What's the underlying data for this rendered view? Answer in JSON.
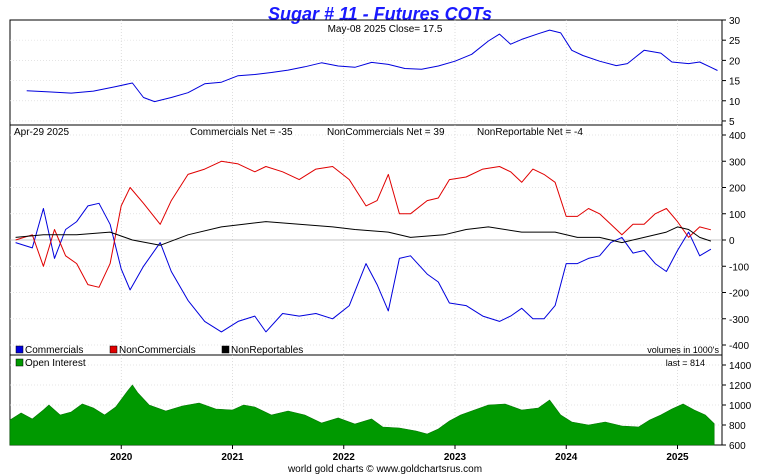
{
  "title": "Sugar # 11 - Futures COTs",
  "footer": "world gold charts © www.goldchartsrus.com",
  "colors": {
    "price": "#0000dd",
    "commercials": "#0000dd",
    "noncommercials": "#e00000",
    "nonreportables": "#000000",
    "open_interest": "#009900"
  },
  "chart_data": [
    {
      "type": "line",
      "panel": "price",
      "subtitle": "May-08  2025   Close= 17.5",
      "ylim": [
        4,
        30
      ],
      "yticks": [
        5,
        10,
        15,
        20,
        25,
        30
      ],
      "y_axis_side": "right",
      "series": [
        {
          "values": [
            [
              2019.15,
              12.5
            ],
            [
              2019.35,
              12.2
            ],
            [
              2019.55,
              11.9
            ],
            [
              2019.75,
              12.4
            ],
            [
              2019.95,
              13.5
            ],
            [
              2020.1,
              14.4
            ],
            [
              2020.2,
              10.8
            ],
            [
              2020.3,
              9.8
            ],
            [
              2020.45,
              10.8
            ],
            [
              2020.6,
              12.0
            ],
            [
              2020.75,
              14.2
            ],
            [
              2020.9,
              14.6
            ],
            [
              2021.05,
              16.2
            ],
            [
              2021.2,
              16.5
            ],
            [
              2021.35,
              17.0
            ],
            [
              2021.5,
              17.6
            ],
            [
              2021.65,
              18.4
            ],
            [
              2021.8,
              19.4
            ],
            [
              2021.95,
              18.6
            ],
            [
              2022.1,
              18.3
            ],
            [
              2022.25,
              19.5
            ],
            [
              2022.4,
              19.0
            ],
            [
              2022.55,
              18.0
            ],
            [
              2022.7,
              17.8
            ],
            [
              2022.85,
              18.6
            ],
            [
              2023.0,
              19.8
            ],
            [
              2023.15,
              21.5
            ],
            [
              2023.3,
              24.8
            ],
            [
              2023.4,
              26.5
            ],
            [
              2023.5,
              24.0
            ],
            [
              2023.6,
              25.2
            ],
            [
              2023.75,
              26.6
            ],
            [
              2023.85,
              27.5
            ],
            [
              2023.95,
              26.8
            ],
            [
              2024.05,
              22.5
            ],
            [
              2024.15,
              21.2
            ],
            [
              2024.3,
              19.8
            ],
            [
              2024.45,
              18.7
            ],
            [
              2024.55,
              19.2
            ],
            [
              2024.7,
              22.5
            ],
            [
              2024.85,
              21.8
            ],
            [
              2024.95,
              19.6
            ],
            [
              2025.1,
              19.2
            ],
            [
              2025.2,
              19.6
            ],
            [
              2025.3,
              18.3
            ],
            [
              2025.36,
              17.5
            ]
          ]
        }
      ]
    },
    {
      "type": "line",
      "panel": "cot",
      "date_label": "Apr-29  2025",
      "header_labels": [
        "Commercials Net = -35",
        "NonCommercials Net = 39",
        "NonReportable Net = -4"
      ],
      "ylim": [
        -400,
        400
      ],
      "yticks": [
        -400,
        -300,
        -200,
        -100,
        0,
        100,
        200,
        300,
        400
      ],
      "y_axis_side": "right",
      "units_note": "volumes in 1000's",
      "series": [
        {
          "name": "Commercials",
          "values": [
            [
              2019.05,
              -10
            ],
            [
              2019.2,
              -30
            ],
            [
              2019.3,
              120
            ],
            [
              2019.4,
              -70
            ],
            [
              2019.5,
              40
            ],
            [
              2019.6,
              70
            ],
            [
              2019.7,
              130
            ],
            [
              2019.8,
              140
            ],
            [
              2019.9,
              60
            ],
            [
              2020.0,
              -110
            ],
            [
              2020.08,
              -190
            ],
            [
              2020.2,
              -100
            ],
            [
              2020.35,
              -10
            ],
            [
              2020.45,
              -120
            ],
            [
              2020.6,
              -230
            ],
            [
              2020.75,
              -310
            ],
            [
              2020.9,
              -350
            ],
            [
              2021.05,
              -310
            ],
            [
              2021.2,
              -290
            ],
            [
              2021.3,
              -350
            ],
            [
              2021.45,
              -280
            ],
            [
              2021.6,
              -290
            ],
            [
              2021.75,
              -280
            ],
            [
              2021.9,
              -300
            ],
            [
              2022.05,
              -250
            ],
            [
              2022.2,
              -90
            ],
            [
              2022.3,
              -170
            ],
            [
              2022.4,
              -270
            ],
            [
              2022.5,
              -70
            ],
            [
              2022.6,
              -60
            ],
            [
              2022.75,
              -130
            ],
            [
              2022.85,
              -160
            ],
            [
              2022.95,
              -240
            ],
            [
              2023.1,
              -250
            ],
            [
              2023.25,
              -290
            ],
            [
              2023.4,
              -310
            ],
            [
              2023.5,
              -290
            ],
            [
              2023.6,
              -260
            ],
            [
              2023.7,
              -300
            ],
            [
              2023.8,
              -300
            ],
            [
              2023.9,
              -250
            ],
            [
              2024.0,
              -90
            ],
            [
              2024.1,
              -90
            ],
            [
              2024.2,
              -70
            ],
            [
              2024.3,
              -60
            ],
            [
              2024.4,
              -10
            ],
            [
              2024.5,
              10
            ],
            [
              2024.6,
              -50
            ],
            [
              2024.7,
              -40
            ],
            [
              2024.8,
              -90
            ],
            [
              2024.9,
              -120
            ],
            [
              2025.0,
              -40
            ],
            [
              2025.1,
              30
            ],
            [
              2025.2,
              -60
            ],
            [
              2025.3,
              -35
            ]
          ]
        },
        {
          "name": "NonCommercials",
          "values": [
            [
              2019.05,
              0
            ],
            [
              2019.2,
              20
            ],
            [
              2019.3,
              -100
            ],
            [
              2019.4,
              40
            ],
            [
              2019.5,
              -60
            ],
            [
              2019.6,
              -90
            ],
            [
              2019.7,
              -170
            ],
            [
              2019.8,
              -180
            ],
            [
              2019.9,
              -90
            ],
            [
              2020.0,
              130
            ],
            [
              2020.08,
              200
            ],
            [
              2020.2,
              140
            ],
            [
              2020.35,
              60
            ],
            [
              2020.45,
              150
            ],
            [
              2020.6,
              250
            ],
            [
              2020.75,
              270
            ],
            [
              2020.9,
              300
            ],
            [
              2021.05,
              290
            ],
            [
              2021.2,
              260
            ],
            [
              2021.3,
              280
            ],
            [
              2021.45,
              260
            ],
            [
              2021.6,
              230
            ],
            [
              2021.75,
              270
            ],
            [
              2021.9,
              280
            ],
            [
              2022.05,
              230
            ],
            [
              2022.2,
              130
            ],
            [
              2022.3,
              150
            ],
            [
              2022.4,
              250
            ],
            [
              2022.5,
              100
            ],
            [
              2022.6,
              100
            ],
            [
              2022.75,
              150
            ],
            [
              2022.85,
              160
            ],
            [
              2022.95,
              230
            ],
            [
              2023.1,
              240
            ],
            [
              2023.25,
              270
            ],
            [
              2023.4,
              280
            ],
            [
              2023.5,
              260
            ],
            [
              2023.6,
              220
            ],
            [
              2023.7,
              270
            ],
            [
              2023.8,
              250
            ],
            [
              2023.9,
              220
            ],
            [
              2024.0,
              90
            ],
            [
              2024.1,
              90
            ],
            [
              2024.2,
              120
            ],
            [
              2024.3,
              100
            ],
            [
              2024.4,
              60
            ],
            [
              2024.5,
              20
            ],
            [
              2024.6,
              60
            ],
            [
              2024.7,
              60
            ],
            [
              2024.8,
              100
            ],
            [
              2024.9,
              120
            ],
            [
              2025.0,
              70
            ],
            [
              2025.1,
              10
            ],
            [
              2025.2,
              50
            ],
            [
              2025.3,
              39
            ]
          ]
        },
        {
          "name": "NonReportables",
          "values": [
            [
              2019.05,
              10
            ],
            [
              2019.3,
              20
            ],
            [
              2019.6,
              20
            ],
            [
              2019.9,
              30
            ],
            [
              2020.1,
              0
            ],
            [
              2020.35,
              -20
            ],
            [
              2020.6,
              20
            ],
            [
              2020.9,
              50
            ],
            [
              2021.1,
              60
            ],
            [
              2021.3,
              70
            ],
            [
              2021.6,
              60
            ],
            [
              2021.9,
              50
            ],
            [
              2022.1,
              40
            ],
            [
              2022.4,
              30
            ],
            [
              2022.6,
              10
            ],
            [
              2022.9,
              20
            ],
            [
              2023.1,
              40
            ],
            [
              2023.3,
              50
            ],
            [
              2023.6,
              30
            ],
            [
              2023.9,
              30
            ],
            [
              2024.1,
              10
            ],
            [
              2024.3,
              10
            ],
            [
              2024.5,
              -10
            ],
            [
              2024.7,
              10
            ],
            [
              2024.9,
              30
            ],
            [
              2025.0,
              50
            ],
            [
              2025.1,
              40
            ],
            [
              2025.2,
              10
            ],
            [
              2025.3,
              -4
            ]
          ]
        }
      ]
    },
    {
      "type": "area",
      "panel": "open_interest",
      "series_label": "Open Interest",
      "last_label": "last = 814",
      "ylim": [
        600,
        1500
      ],
      "yticks": [
        600,
        800,
        1000,
        1200,
        1400
      ],
      "y_axis_side": "right",
      "series": [
        {
          "name": "Open Interest",
          "values": [
            [
              2019.0,
              850
            ],
            [
              2019.1,
              920
            ],
            [
              2019.2,
              860
            ],
            [
              2019.3,
              950
            ],
            [
              2019.35,
              1000
            ],
            [
              2019.45,
              900
            ],
            [
              2019.55,
              930
            ],
            [
              2019.65,
              1010
            ],
            [
              2019.75,
              970
            ],
            [
              2019.85,
              900
            ],
            [
              2019.95,
              980
            ],
            [
              2020.05,
              1130
            ],
            [
              2020.1,
              1200
            ],
            [
              2020.15,
              1120
            ],
            [
              2020.25,
              1000
            ],
            [
              2020.4,
              940
            ],
            [
              2020.55,
              990
            ],
            [
              2020.7,
              1020
            ],
            [
              2020.85,
              960
            ],
            [
              2021.0,
              950
            ],
            [
              2021.1,
              1000
            ],
            [
              2021.2,
              980
            ],
            [
              2021.35,
              900
            ],
            [
              2021.5,
              940
            ],
            [
              2021.65,
              900
            ],
            [
              2021.8,
              820
            ],
            [
              2021.95,
              870
            ],
            [
              2022.1,
              810
            ],
            [
              2022.25,
              860
            ],
            [
              2022.35,
              780
            ],
            [
              2022.5,
              770
            ],
            [
              2022.65,
              740
            ],
            [
              2022.75,
              710
            ],
            [
              2022.85,
              760
            ],
            [
              2022.95,
              840
            ],
            [
              2023.05,
              900
            ],
            [
              2023.15,
              940
            ],
            [
              2023.3,
              1000
            ],
            [
              2023.45,
              1010
            ],
            [
              2023.6,
              950
            ],
            [
              2023.75,
              970
            ],
            [
              2023.85,
              1050
            ],
            [
              2023.95,
              900
            ],
            [
              2024.05,
              830
            ],
            [
              2024.2,
              800
            ],
            [
              2024.35,
              830
            ],
            [
              2024.5,
              790
            ],
            [
              2024.65,
              780
            ],
            [
              2024.75,
              850
            ],
            [
              2024.85,
              900
            ],
            [
              2024.95,
              960
            ],
            [
              2025.05,
              1010
            ],
            [
              2025.15,
              950
            ],
            [
              2025.25,
              900
            ],
            [
              2025.33,
              814
            ]
          ]
        }
      ]
    }
  ],
  "x_axis": {
    "xlim": [
      2019.0,
      2025.4
    ],
    "ticks": [
      {
        "value": 2020.0,
        "label": "2020"
      },
      {
        "value": 2021.0,
        "label": "2021"
      },
      {
        "value": 2022.0,
        "label": "2022"
      },
      {
        "value": 2023.0,
        "label": "2023"
      },
      {
        "value": 2024.0,
        "label": "2024"
      },
      {
        "value": 2025.0,
        "label": "2025"
      }
    ]
  },
  "legend": [
    {
      "name": "Commercials",
      "color": "#0000dd"
    },
    {
      "name": "NonCommercials",
      "color": "#e00000"
    },
    {
      "name": "NonReportables",
      "color": "#000000"
    }
  ]
}
